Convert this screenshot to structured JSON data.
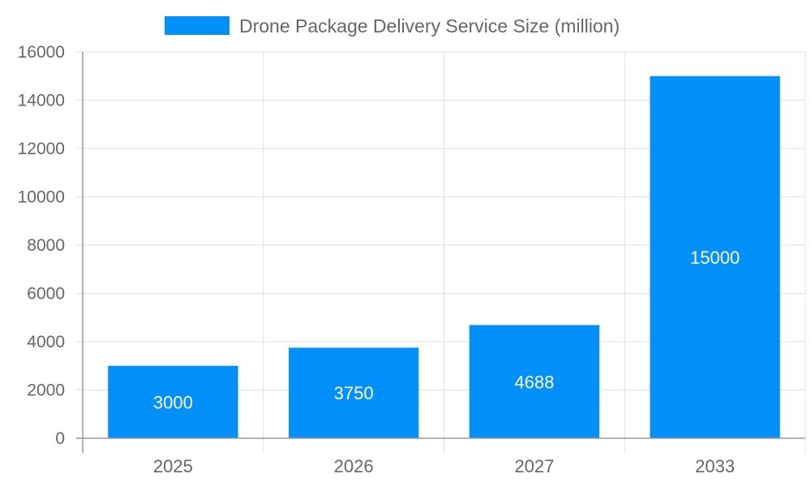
{
  "chart_data": {
    "type": "bar",
    "title": "",
    "xlabel": "",
    "ylabel": "",
    "categories": [
      "2025",
      "2026",
      "2027",
      "2033"
    ],
    "series": [
      {
        "name": "Drone Package Delivery Service Size (million)",
        "values": [
          3000,
          3750,
          4688,
          15000
        ],
        "color": "#0390fb"
      }
    ],
    "ylim": [
      0,
      16000
    ],
    "yticks": [
      0,
      2000,
      4000,
      6000,
      8000,
      10000,
      12000,
      14000,
      16000
    ],
    "grid": true,
    "legend": "top",
    "data_labels": true
  }
}
